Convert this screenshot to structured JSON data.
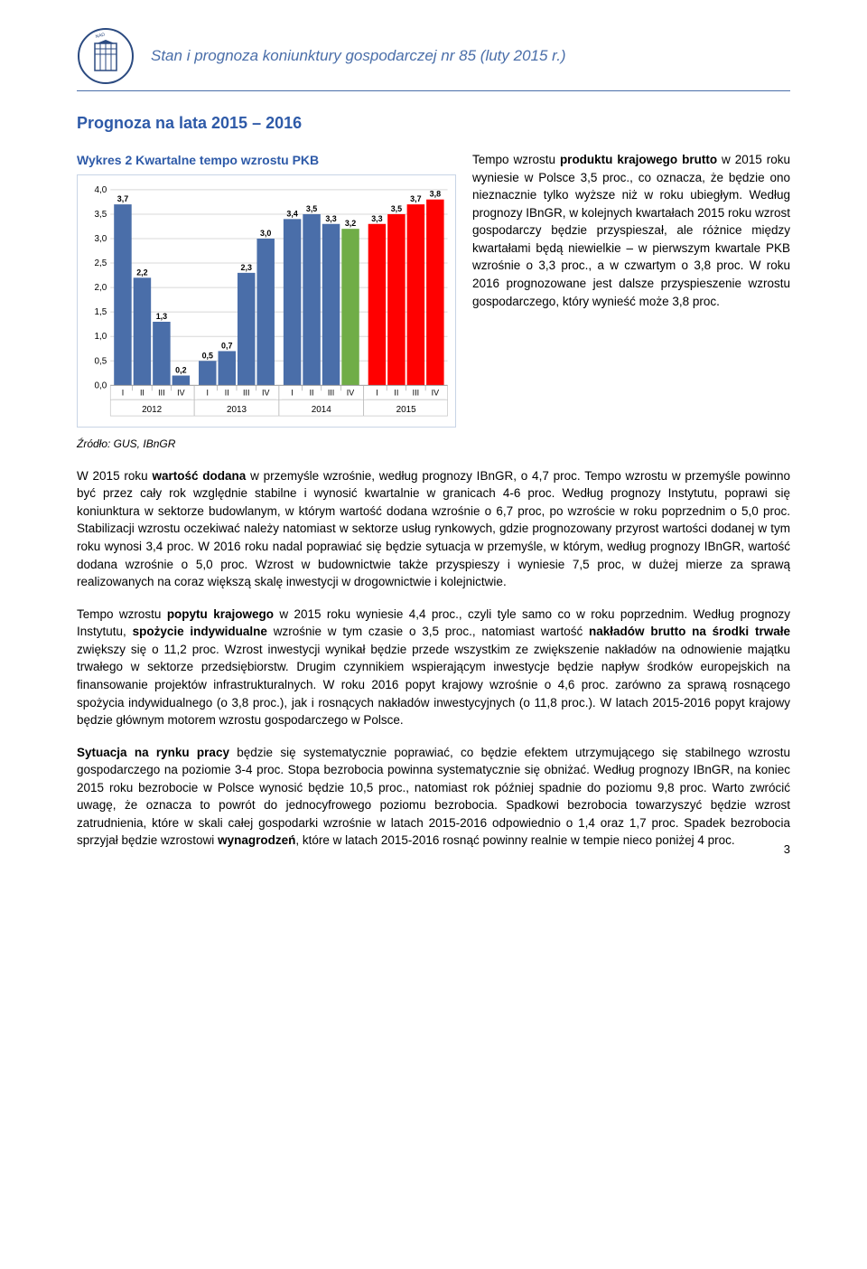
{
  "header": {
    "title": "Stan i prognoza koniunktury gospodarczej nr 85 (luty 2015 r.)"
  },
  "section_title": "Prognoza na lata 2015 – 2016",
  "chart": {
    "caption": "Wykres 2 Kwartalne tempo wzrostu PKB",
    "source": "Źródło: GUS, IBnGR",
    "type": "bar",
    "ylim": [
      0.0,
      4.0
    ],
    "ytick_step": 0.5,
    "yticks": [
      "0,0",
      "0,5",
      "1,0",
      "1,5",
      "2,0",
      "2,5",
      "3,0",
      "3,5",
      "4,0"
    ],
    "background_color": "#ffffff",
    "border_color": "#c8d4e6",
    "grid_color": "#d8d8d8",
    "label_fontsize": 9,
    "years": [
      {
        "year": "2012",
        "color": "#4a6ea9",
        "quarters": [
          {
            "q": "I",
            "v": 3.7,
            "label": "3,7"
          },
          {
            "q": "II",
            "v": 2.2,
            "label": "2,2"
          },
          {
            "q": "III",
            "v": 1.3,
            "label": "1,3"
          },
          {
            "q": "IV",
            "v": 0.2,
            "label": "0,2"
          }
        ]
      },
      {
        "year": "2013",
        "color": "#4a6ea9",
        "quarters": [
          {
            "q": "I",
            "v": 0.5,
            "label": "0,5"
          },
          {
            "q": "II",
            "v": 0.7,
            "label": "0,7"
          },
          {
            "q": "III",
            "v": 2.3,
            "label": "2,3"
          },
          {
            "q": "IV",
            "v": 3.0,
            "label": "3,0"
          }
        ]
      },
      {
        "year": "2014",
        "color_default": "#4a6ea9",
        "color_highlight": "#70ad47",
        "quarters": [
          {
            "q": "I",
            "v": 3.4,
            "label": "3,4",
            "color": "#4a6ea9"
          },
          {
            "q": "II",
            "v": 3.5,
            "label": "3,5",
            "color": "#4a6ea9"
          },
          {
            "q": "III",
            "v": 3.3,
            "label": "3,3",
            "color": "#4a6ea9"
          },
          {
            "q": "IV",
            "v": 3.2,
            "label": "3,2",
            "color": "#70ad47"
          }
        ]
      },
      {
        "year": "2015",
        "color": "#ff0000",
        "quarters": [
          {
            "q": "I",
            "v": 3.3,
            "label": "3,3"
          },
          {
            "q": "II",
            "v": 3.5,
            "label": "3,5"
          },
          {
            "q": "III",
            "v": 3.7,
            "label": "3,7"
          },
          {
            "q": "IV",
            "v": 3.8,
            "label": "3,8"
          }
        ]
      }
    ]
  },
  "aside": "Tempo wzrostu <b>produktu krajowego brutto</b> w 2015 roku wyniesie w Polsce 3,5 proc., co oznacza, że będzie ono nieznacznie tylko wyższe niż w roku ubiegłym. Według prognozy IBnGR, w kolejnych kwartałach 2015 roku wzrost gospodarczy będzie przyspieszał, ale różnice między kwartałami będą niewielkie – w pierwszym kwartale PKB wzrośnie o 3,3 proc., a w czwartym o 3,8 proc. W roku 2016 prognozowane jest dalsze przyspieszenie wzrostu gospodarczego, który wynieść może 3,8 proc.",
  "paragraphs": [
    "W 2015 roku <b>wartość dodana</b> w przemyśle wzrośnie, według prognozy IBnGR, o 4,7 proc. Tempo wzrostu w przemyśle powinno być przez cały rok względnie stabilne i wynosić kwartalnie w granicach 4-6 proc. Według prognozy Instytutu, poprawi się koniunktura w sektorze budowlanym, w którym wartość dodana wzrośnie o 6,7 proc, po wzroście w roku poprzednim o 5,0 proc. Stabilizacji wzrostu oczekiwać należy natomiast w sektorze usług rynkowych, gdzie prognozowany przyrost wartości dodanej w tym roku wynosi 3,4 proc. W 2016 roku nadal poprawiać się będzie sytuacja w przemyśle, w którym, według prognozy IBnGR, wartość dodana wzrośnie o 5,0 proc. Wzrost w budownictwie także przyspieszy i wyniesie 7,5 proc, w dużej mierze za sprawą realizowanych na coraz większą skalę inwestycji w drogownictwie i kolejnictwie.",
    "Tempo wzrostu <b>popytu krajowego</b> w 2015 roku wyniesie 4,4 proc., czyli tyle samo co w roku poprzednim. Według prognozy Instytutu, <b>spożycie indywidualne</b> wzrośnie w tym czasie o 3,5 proc., natomiast wartość <b>nakładów brutto na środki trwałe</b> zwiększy się o 11,2 proc. Wzrost inwestycji wynikał będzie przede wszystkim ze zwiększenie nakładów na odnowienie majątku trwałego w sektorze przedsiębiorstw. Drugim czynnikiem wspierającym inwestycje będzie napływ środków europejskich na finansowanie projektów infrastrukturalnych. W roku 2016 popyt krajowy wzrośnie o 4,6 proc. zarówno za sprawą rosnącego spożycia indywidualnego (o 3,8 proc.), jak i rosnących nakładów inwestycyjnych (o 11,8 proc.). W latach 2015-2016 popyt krajowy będzie głównym motorem wzrostu gospodarczego w Polsce.",
    "<b>Sytuacja na rynku pracy</b> będzie się systematycznie poprawiać, co będzie efektem utrzymującego się stabilnego wzrostu gospodarczego na poziomie 3-4 proc. Stopa bezrobocia powinna systematycznie się obniżać. Według prognozy IBnGR, na koniec 2015 roku bezrobocie w Polsce wynosić będzie 10,5 proc., natomiast rok później spadnie do poziomu 9,8 proc. Warto zwrócić uwagę, że oznacza to powrót do jednocyfrowego poziomu bezrobocia. Spadkowi bezrobocia towarzyszyć będzie wzrost zatrudnienia, które w skali całej gospodarki wzrośnie w latach 2015-2016 odpowiednio o 1,4 oraz 1,7 proc. Spadek bezrobocia sprzyjał będzie wzrostowi <b>wynagrodzeń</b>, które w latach 2015-2016 rosnąć powinny realnie w tempie nieco poniżej 4 proc."
  ],
  "page_number": "3"
}
